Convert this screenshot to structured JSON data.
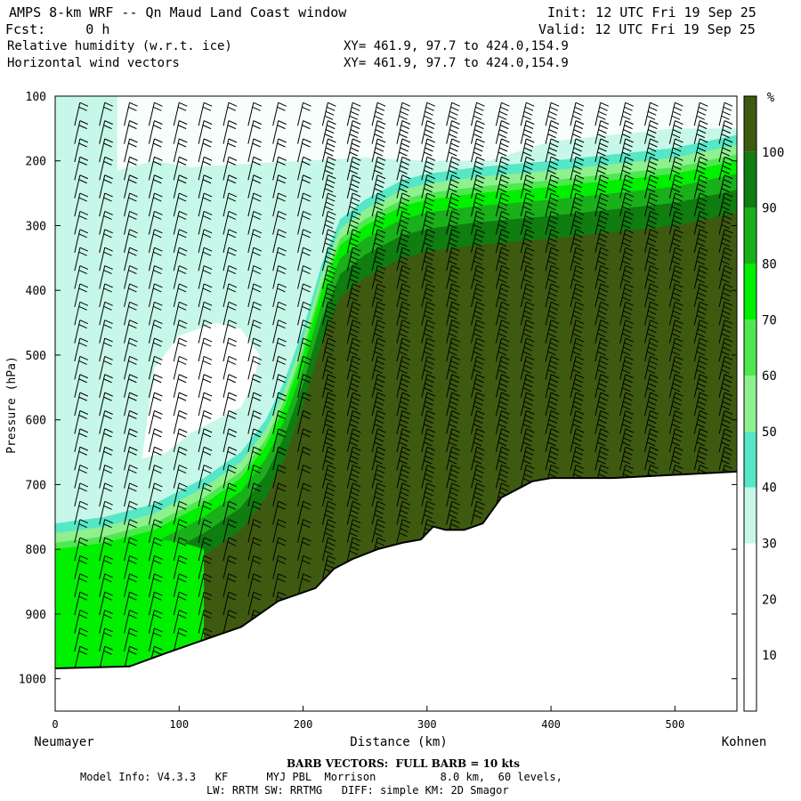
{
  "header": {
    "title": "AMPS 8-km WRF -- Qn Maud Land Coast window",
    "fcst": "Fcst:     0 h",
    "line3": "Relative humidity (w.r.t. ice)",
    "line4": "Horizontal wind vectors",
    "xy1": "XY= 461.9, 97.7 to 424.0,154.9",
    "xy2": "XY= 461.9, 97.7 to 424.0,154.9",
    "init": "Init: 12 UTC Fri 19 Sep 25",
    "valid": "Valid: 12 UTC Fri 19 Sep 25"
  },
  "footer": {
    "barb": "BARB VECTORS:  FULL BARB = 10 kts",
    "model1": "Model Info: V4.3.3   KF      MYJ PBL  Morrison          8.0 km,  60 levels,",
    "model2": "LW: RRTM SW: RRTMG   DIFF: simple KM: 2D Smagor"
  },
  "colors": {
    "rh_10_30": "#ffffff",
    "rh_30_40": "#c6f7e8",
    "rh_40_50": "#55e7c6",
    "rh_50_60": "#8ff08f",
    "rh_60_70": "#4fe84f",
    "rh_70_80": "#00f000",
    "rh_80_90": "#1ab01a",
    "rh_90_100": "#0f7d0f",
    "rh_100": "#3e5a10",
    "terrain": "#ffffff"
  },
  "chart_data": {
    "type": "cross-section",
    "xlabel": "Distance (km)",
    "ylabel": "Pressure (hPa)",
    "xlim": [
      0,
      550
    ],
    "ylim": [
      1050,
      100
    ],
    "x_ticks": [
      0,
      100,
      200,
      300,
      400,
      500
    ],
    "y_ticks": [
      100,
      200,
      300,
      400,
      500,
      600,
      700,
      800,
      900,
      1000
    ],
    "x_end_labels": {
      "left": "Neumayer",
      "right": "Kohnen"
    },
    "colorbar": {
      "unit": "%",
      "ticks": [
        10,
        20,
        30,
        40,
        50,
        60,
        70,
        80,
        90,
        100
      ]
    },
    "surface_pressure": {
      "x": [
        0,
        20,
        60,
        90,
        120,
        150,
        165,
        180,
        195,
        210,
        225,
        240,
        260,
        280,
        295,
        305,
        315,
        330,
        345,
        360,
        375,
        385,
        400,
        450,
        500,
        550
      ],
      "p": [
        984,
        983,
        981,
        960,
        940,
        920,
        900,
        880,
        870,
        860,
        830,
        815,
        800,
        790,
        785,
        765,
        770,
        770,
        760,
        720,
        705,
        695,
        690,
        690,
        685,
        680
      ]
    },
    "moist_region_boundary": {
      "x": [
        0,
        40,
        80,
        120,
        150,
        170,
        185,
        200,
        215,
        230,
        250,
        280,
        300,
        340,
        400,
        450,
        500,
        550
      ],
      "p": [
        800,
        790,
        770,
        730,
        690,
        640,
        580,
        500,
        400,
        330,
        300,
        270,
        260,
        250,
        240,
        230,
        220,
        200
      ]
    },
    "dry_core": {
      "x": [
        70,
        90,
        110,
        130,
        150,
        160,
        165,
        150,
        130,
        100,
        80
      ],
      "p": [
        660,
        650,
        620,
        600,
        580,
        540,
        500,
        460,
        450,
        470,
        520
      ]
    },
    "upper_dry_region": {
      "x": [
        50,
        80,
        110,
        150,
        200,
        250,
        300,
        350,
        400,
        450,
        500,
        550
      ],
      "p": [
        215,
        200,
        210,
        205,
        200,
        195,
        200,
        200,
        170,
        160,
        150,
        150
      ]
    },
    "barb_columns_km": [
      20,
      40,
      60,
      80,
      100,
      120,
      140,
      160,
      180,
      200,
      220,
      240,
      260,
      280,
      300,
      320,
      340,
      360,
      380,
      400,
      420,
      440,
      460,
      480,
      500,
      520,
      540
    ]
  }
}
